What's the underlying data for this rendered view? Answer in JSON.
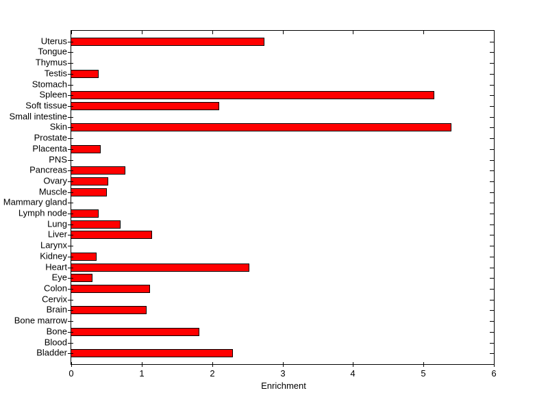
{
  "chart_data": {
    "type": "bar",
    "orientation": "horizontal",
    "title": "",
    "xlabel": "Enrichment",
    "ylabel": "",
    "categories": [
      "Uterus",
      "Tongue",
      "Thymus",
      "Testis",
      "Stomach",
      "Spleen",
      "Soft tissue",
      "Small intestine",
      "Skin",
      "Prostate",
      "Placenta",
      "PNS",
      "Pancreas",
      "Ovary",
      "Muscle",
      "Mammary gland",
      "Lymph node",
      "Lung",
      "Liver",
      "Larynx",
      "Kidney",
      "Heart",
      "Eye",
      "Colon",
      "Cervix",
      "Brain",
      "Bone marrow",
      "Bone",
      "Blood",
      "Bladder"
    ],
    "values": [
      2.73,
      0,
      0,
      0.38,
      0,
      5.14,
      2.09,
      0,
      5.39,
      0,
      0.41,
      0,
      0.76,
      0.52,
      0.5,
      0,
      0.38,
      0.69,
      1.14,
      0,
      0.35,
      2.52,
      0.29,
      1.11,
      0,
      1.06,
      0,
      1.81,
      0,
      2.29
    ],
    "xlim": [
      0,
      6
    ],
    "xticks": [
      0,
      1,
      2,
      3,
      4,
      5,
      6
    ],
    "xtick_labels": [
      "0",
      "1",
      "2",
      "3",
      "4",
      "5",
      "6"
    ],
    "grid": false,
    "legend": null,
    "bar_color": "#ff0000",
    "bar_edge_color": "#000000",
    "axis_color": "#000000",
    "background_color": "#ffffff"
  }
}
